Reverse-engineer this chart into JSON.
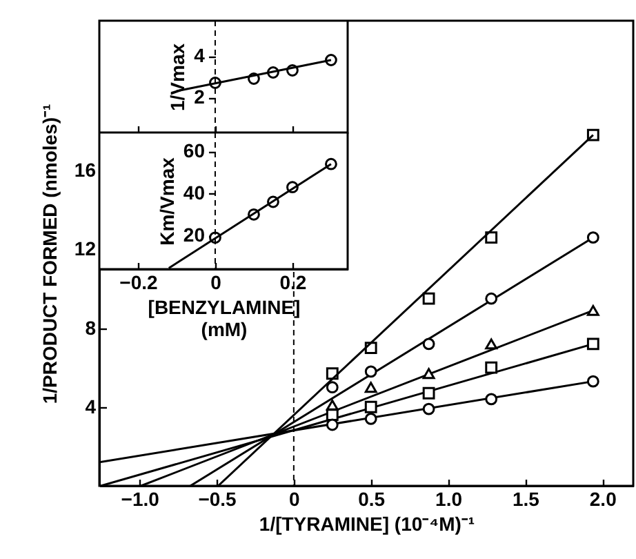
{
  "chart_data": [
    {
      "type": "scatter",
      "xlabel": "1/[TYRAMINE] (10⁻⁴M)⁻¹",
      "ylabel": "1/PRODUCT FORMED (nmoles)⁻¹",
      "x": [
        0.25,
        0.5,
        0.875,
        1.28,
        1.94
      ],
      "xlim": [
        -1.26,
        2.2
      ],
      "ylim": [
        0,
        23.6
      ],
      "xticks": [
        {
          "value": -1,
          "label": "−1.0"
        },
        {
          "value": -0.5,
          "label": "−0.5"
        },
        {
          "value": 0,
          "label": "0"
        },
        0.5,
        {
          "value": 1,
          "label": "1.0"
        },
        1.5,
        {
          "value": 2,
          "label": "2.0"
        }
      ],
      "yticks": [
        4,
        8,
        12,
        16
      ],
      "ref_lines": [
        {
          "axis": "x",
          "value": 0,
          "line_style": "dashed"
        }
      ],
      "series": [
        {
          "marker": "square",
          "color": "#000000",
          "values": [
            5.7,
            7.0,
            9.5,
            12.6,
            17.8
          ]
        },
        {
          "marker": "circle",
          "color": "#000000",
          "values": [
            5.0,
            5.8,
            7.2,
            9.5,
            12.6
          ]
        },
        {
          "marker": "triangle",
          "color": "#000000",
          "values": [
            4.1,
            5.0,
            5.7,
            7.2,
            8.9
          ]
        },
        {
          "marker": "square",
          "color": "#000000",
          "values": [
            3.6,
            4.0,
            4.7,
            6.0,
            7.2
          ]
        },
        {
          "marker": "circle",
          "color": "#000000",
          "values": [
            3.1,
            3.4,
            3.9,
            4.4,
            5.3
          ]
        },
        {
          "type": "line",
          "color": "#000000",
          "x": [
            -0.49,
            1.94
          ],
          "values": [
            0,
            17.8
          ]
        },
        {
          "type": "line",
          "color": "#000000",
          "x": [
            -0.67,
            1.94
          ],
          "values": [
            0,
            12.6
          ]
        },
        {
          "type": "line",
          "color": "#000000",
          "x": [
            -0.99,
            1.94
          ],
          "values": [
            0,
            8.9
          ]
        },
        {
          "type": "line",
          "color": "#000000",
          "x": [
            -1.25,
            1.94
          ],
          "values": [
            0,
            7.2
          ]
        },
        {
          "type": "line",
          "color": "#000000",
          "x": [
            -1.26,
            1.94
          ],
          "values": [
            1.2,
            5.3
          ]
        }
      ]
    },
    {
      "type": "scatter",
      "ylabel": "1/Vmax",
      "x": [
        0,
        0.1,
        0.15,
        0.2,
        0.3
      ],
      "xlim": [
        -0.3,
        0.343
      ],
      "ylim": [
        0.3,
        5.7
      ],
      "xticks": [
        -0.2,
        0,
        0.2
      ],
      "yticks": [
        2,
        4
      ],
      "tick_labels": "y",
      "ref_lines": [
        {
          "axis": "x",
          "value": 0,
          "line_style": "dashed"
        }
      ],
      "series": [
        {
          "marker": "circle",
          "color": "#000000",
          "values": [
            2.7,
            2.9,
            3.2,
            3.3,
            3.8
          ]
        },
        {
          "type": "line",
          "color": "#000000",
          "x": [
            -0.1,
            0.3
          ],
          "values": [
            2.3,
            3.8
          ]
        }
      ]
    },
    {
      "type": "scatter",
      "xlabel": "[BENZYLAMINE]\n(mM)",
      "ylabel": "Km/Vmax",
      "x": [
        0,
        0.1,
        0.15,
        0.2,
        0.3
      ],
      "xlim": [
        -0.3,
        0.343
      ],
      "ylim": [
        4,
        69
      ],
      "xticks": [
        {
          "value": -0.2,
          "label": "−0.2"
        },
        0,
        0.2
      ],
      "yticks": [
        20,
        40,
        60
      ],
      "ref_lines": [
        {
          "axis": "x",
          "value": 0,
          "line_style": "dashed"
        }
      ],
      "series": [
        {
          "marker": "circle",
          "color": "#000000",
          "values": [
            19,
            30,
            36,
            43,
            54
          ]
        },
        {
          "type": "line",
          "color": "#000000",
          "x": [
            -0.12,
            0.3
          ],
          "values": [
            4.5,
            54
          ]
        }
      ]
    }
  ]
}
